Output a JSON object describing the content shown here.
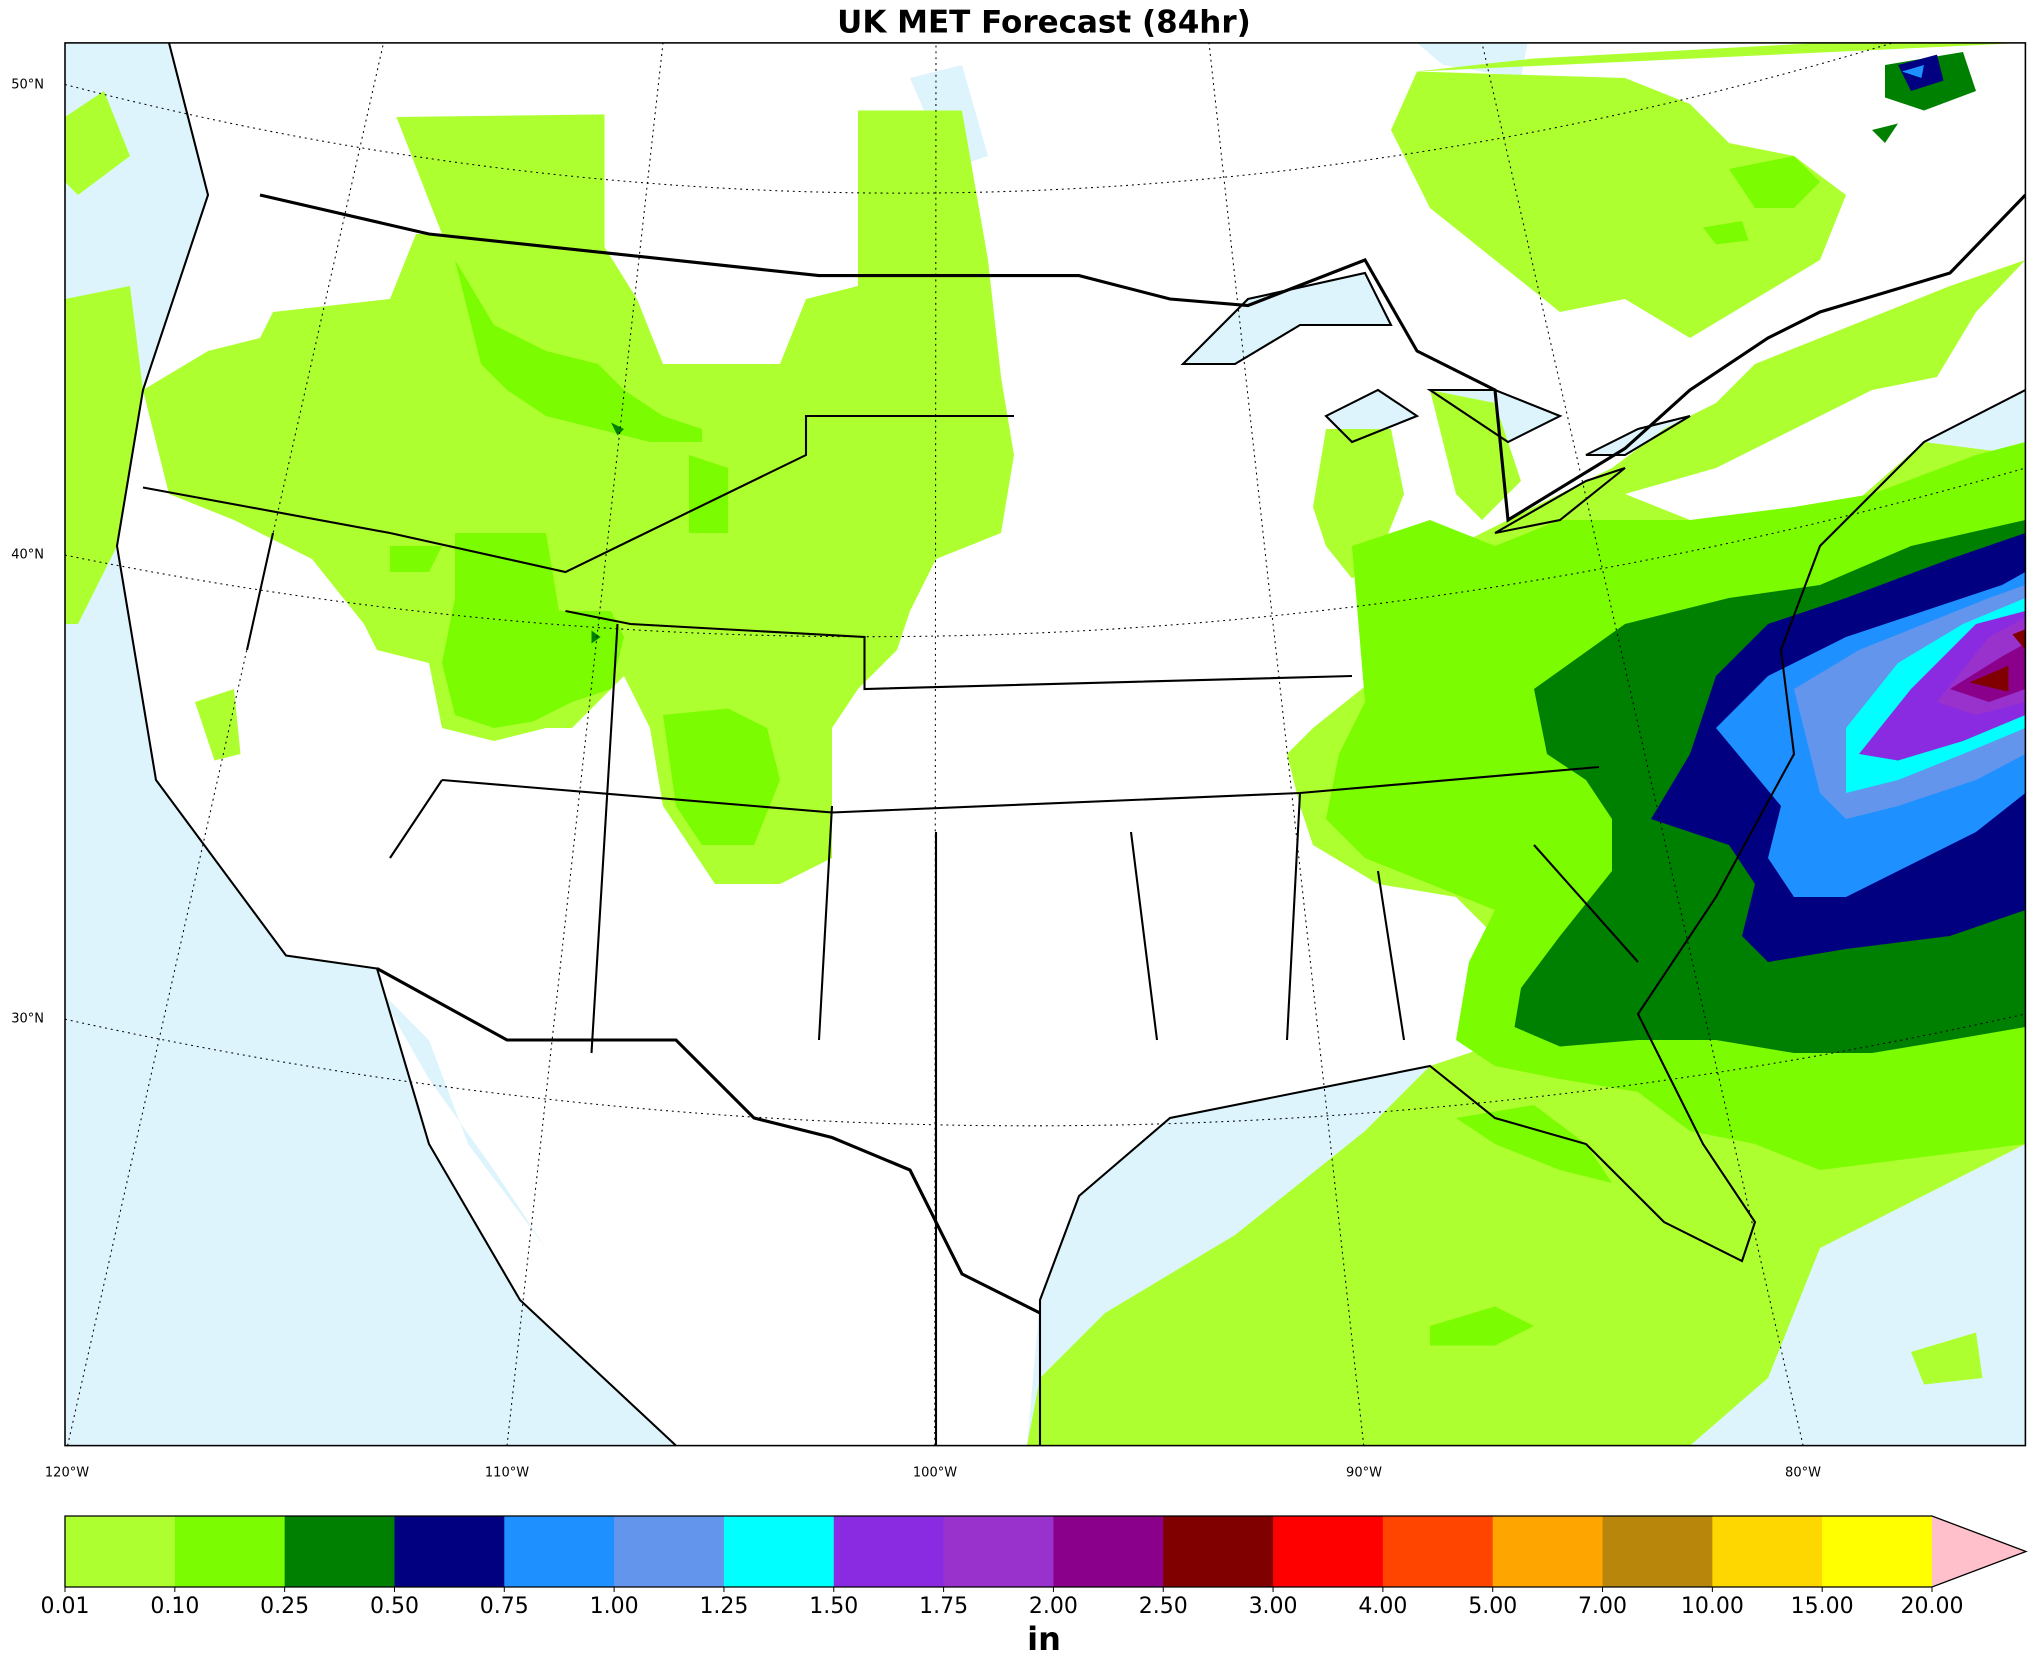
{
  "title": "UK MET Forecast (84hr)",
  "map": {
    "lat_labels": [
      "50°N",
      "40°N",
      "30°N"
    ],
    "lon_labels": [
      "120°W",
      "110°W",
      "100°W",
      "90°W",
      "80°W"
    ]
  },
  "colorbar": {
    "colors": [
      "#adff2f",
      "#7cfc00",
      "#008000",
      "#000080",
      "#1e90ff",
      "#6495ed",
      "#00ffff",
      "#8a2be2",
      "#9932cc",
      "#8b008b",
      "#800000",
      "#ff0000",
      "#ff4500",
      "#ffa500",
      "#b8860b",
      "#ffd700",
      "#ffff00"
    ],
    "extend_color": "#ffc0cb",
    "ticks": [
      "0.01",
      "0.10",
      "0.25",
      "0.50",
      "0.75",
      "1.00",
      "1.25",
      "1.50",
      "1.75",
      "2.00",
      "2.50",
      "3.00",
      "4.00",
      "5.00",
      "7.00",
      "10.00",
      "15.00",
      "20.00"
    ],
    "unit": "in"
  }
}
